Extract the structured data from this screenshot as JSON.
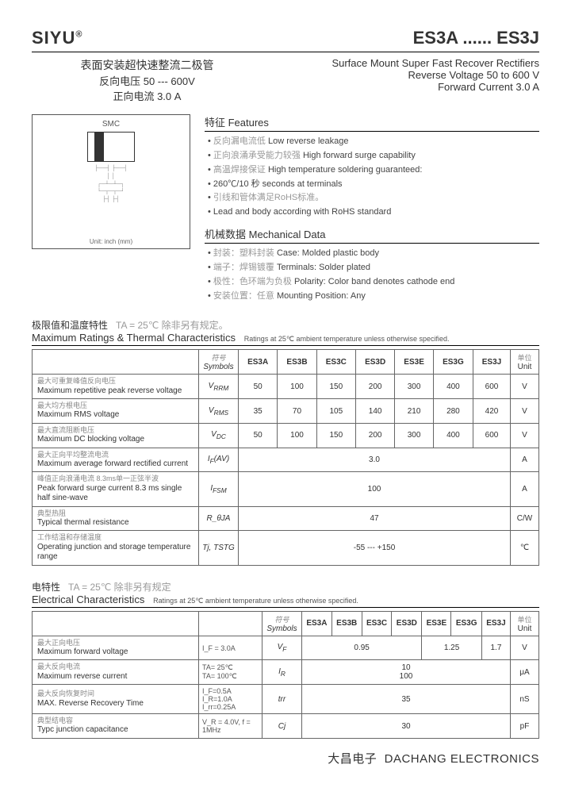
{
  "header": {
    "brand": "SIYU",
    "part_range": "ES3A ...... ES3J"
  },
  "subheader": {
    "cn_title": "表面安装超快速整流二极管",
    "cn_line1": "反向电压 50 --- 600V",
    "cn_line2": "正向电流 3.0 A",
    "en_title": "Surface Mount Super Fast Recover Rectifiers",
    "en_line1": "Reverse Voltage 50 to 600 V",
    "en_line2": "Forward Current 3.0 A"
  },
  "diagram": {
    "pkg": "SMC",
    "unit_note": "Unit: inch (mm)"
  },
  "features": {
    "title": "特征  Features",
    "items": [
      {
        "cn": "反向漏电流低",
        "en": "Low reverse leakage"
      },
      {
        "cn": "正向浪涌承受能力较强",
        "en": "High forward surge capability"
      },
      {
        "cn": "高温焊接保证",
        "en": "High temperature soldering guaranteed:"
      },
      {
        "cn": "",
        "en": "260℃/10 秒  seconds at terminals"
      },
      {
        "cn": "引线和管体满足RoHS标准。",
        "en": ""
      },
      {
        "cn": "",
        "en": "Lead and body according with RoHS standard"
      }
    ]
  },
  "mechdata": {
    "title": "机械数据  Mechanical Data",
    "items": [
      {
        "cn": "封装：塑料封装",
        "en": "Case: Molded plastic body"
      },
      {
        "cn": "端子：焊锡镀覆",
        "en": "Terminals: Solder plated"
      },
      {
        "cn": "极性：色环端为负极",
        "en": "Polarity: Color band denotes cathode end"
      },
      {
        "cn": "安装位置：任意",
        "en": "Mounting Position: Any"
      }
    ]
  },
  "ratings": {
    "heading_cn": "极限值和温度特性",
    "heading_cond": "TA = 25℃  除非另有规定。",
    "heading_en": "Maximum Ratings & Thermal Characteristics",
    "heading_sub": "Ratings at 25℃ ambient temperature unless otherwise specified.",
    "col_sym_cn": "符号",
    "col_sym_en": "Symbols",
    "col_unit_cn": "单位",
    "col_unit_en": "Unit",
    "parts": [
      "ES3A",
      "ES3B",
      "ES3C",
      "ES3D",
      "ES3E",
      "ES3G",
      "ES3J"
    ],
    "rows": [
      {
        "cn": "最大可重复峰值反向电压",
        "en": "Maximum repetitive peak reverse voltage",
        "sym": "V_RRM",
        "vals": [
          "50",
          "100",
          "150",
          "200",
          "300",
          "400",
          "600"
        ],
        "unit": "V"
      },
      {
        "cn": "最大均方根电压",
        "en": "Maximum RMS voltage",
        "sym": "V_RMS",
        "vals": [
          "35",
          "70",
          "105",
          "140",
          "210",
          "280",
          "420"
        ],
        "unit": "V"
      },
      {
        "cn": "最大直流阻断电压",
        "en": "Maximum DC blocking voltage",
        "sym": "V_DC",
        "vals": [
          "50",
          "100",
          "150",
          "200",
          "300",
          "400",
          "600"
        ],
        "unit": "V"
      },
      {
        "cn": "最大正向平均整流电流",
        "en": "Maximum average forward rectified current",
        "sym": "I_F(AV)",
        "span": "3.0",
        "unit": "A"
      },
      {
        "cn": "峰值正向浪涌电流 8.3ms单一正弦半波",
        "en": "Peak forward surge current 8.3 ms single half sine-wave",
        "sym": "I_FSM",
        "span": "100",
        "unit": "A"
      },
      {
        "cn": "典型热阻",
        "en": "Typical thermal resistance",
        "sym": "R_θJA",
        "span": "47",
        "unit": "C/W"
      },
      {
        "cn": "工作结温和存储温度",
        "en": "Operating junction and storage temperature range",
        "sym": "Tj, TSTG",
        "span": "-55 --- +150",
        "unit": "℃"
      }
    ]
  },
  "elec": {
    "heading_cn": "电特性",
    "heading_cond": "TA =  25℃ 除非另有规定",
    "heading_en": "Electrical Characteristics",
    "heading_sub": "Ratings at 25℃ ambient temperature unless otherwise specified.",
    "parts": [
      "ES3A",
      "ES3B",
      "ES3C",
      "ES3D",
      "ES3E",
      "ES3G",
      "ES3J"
    ],
    "rows": [
      {
        "cn": "最大正向电压",
        "en": "Maximum forward voltage",
        "cond": "I_F = 3.0A",
        "sym": "V_F",
        "cells": [
          {
            "span": 4,
            "val": "0.95"
          },
          {
            "span": 2,
            "val": "1.25"
          },
          {
            "span": 1,
            "val": "1.7"
          }
        ],
        "unit": "V"
      },
      {
        "cn": "最大反向电流",
        "en": "Maximum reverse current",
        "cond": "TA= 25℃\nTA= 100℃",
        "sym": "I_R",
        "cells": [
          {
            "span": 7,
            "val": "10\n100"
          }
        ],
        "unit": "μA"
      },
      {
        "cn": "最大反向恢复时间",
        "en": "MAX. Reverse Recovery Time",
        "cond": "I_F=0.5A I_R=1.0A I_rr=0.25A",
        "sym": "trr",
        "cells": [
          {
            "span": 7,
            "val": "35"
          }
        ],
        "unit": "nS"
      },
      {
        "cn": "典型结电容",
        "en": "Typc junction capacitance",
        "cond": "V_R = 4.0V,  f = 1MHz",
        "sym": "Cj",
        "cells": [
          {
            "span": 7,
            "val": "30"
          }
        ],
        "unit": "pF"
      }
    ]
  },
  "footer": {
    "cn": "大昌电子",
    "en": "DACHANG ELECTRONICS"
  }
}
